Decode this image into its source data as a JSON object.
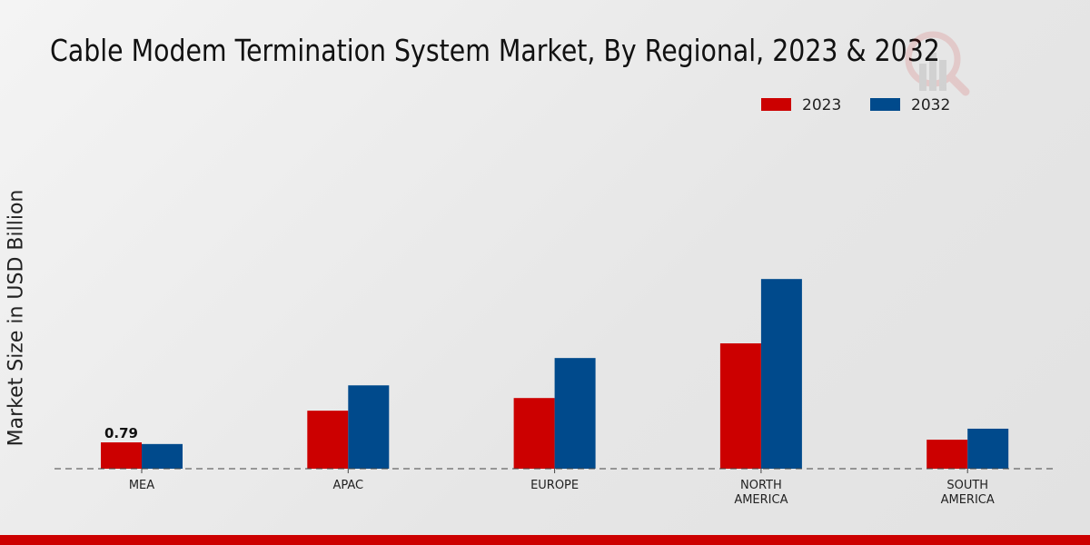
{
  "chart_data": {
    "type": "bar",
    "title": "Cable Modem Termination System Market, By Regional, 2023 & 2032",
    "xlabel": "",
    "ylabel": "Market Size in USD Billion",
    "categories": [
      [
        "MEA"
      ],
      [
        "APAC"
      ],
      [
        "EUROPE"
      ],
      [
        "NORTH",
        "AMERICA"
      ],
      [
        "SOUTH",
        "AMERICA"
      ]
    ],
    "series": [
      {
        "name": "2023",
        "color": "#cc0000",
        "values": [
          0.79,
          1.74,
          2.12,
          3.76,
          0.87
        ]
      },
      {
        "name": "2032",
        "color": "#004a8c",
        "values": [
          0.74,
          2.5,
          3.32,
          5.69,
          1.2
        ]
      }
    ],
    "data_labels": [
      {
        "series": 0,
        "index": 0,
        "text": "0.79"
      }
    ],
    "ylim": [
      0,
      6.5
    ],
    "grid": false,
    "legend": "top-right"
  }
}
